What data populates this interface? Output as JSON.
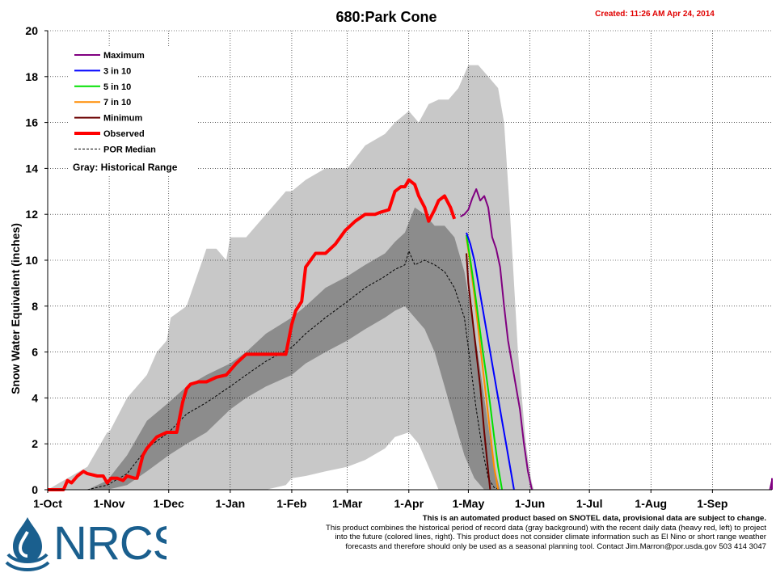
{
  "chart_data": {
    "type": "line",
    "title": "680:Park Cone",
    "created": "Created: 11:26 AM Apr 24, 2014",
    "ylabel": "Snow Water Equivalent (inches)",
    "xlabel": "",
    "ylim": [
      0,
      20
    ],
    "yticks": [
      0,
      2,
      4,
      6,
      8,
      10,
      12,
      14,
      16,
      18,
      20
    ],
    "grid": true,
    "legend_position": "top-left",
    "x_ticks": [
      {
        "label": "1-Oct",
        "day": 0
      },
      {
        "label": "1-Nov",
        "day": 31
      },
      {
        "label": "1-Dec",
        "day": 61
      },
      {
        "label": "1-Jan",
        "day": 92
      },
      {
        "label": "1-Feb",
        "day": 123
      },
      {
        "label": "1-Mar",
        "day": 151
      },
      {
        "label": "1-Apr",
        "day": 182
      },
      {
        "label": "1-May",
        "day": 212
      },
      {
        "label": "1-Jun",
        "day": 243
      },
      {
        "label": "1-Jul",
        "day": 273
      },
      {
        "label": "1-Aug",
        "day": 304
      },
      {
        "label": "1-Sep",
        "day": 335
      }
    ],
    "x_max_day": 365,
    "historical_range_outer": {
      "days": [
        0,
        10,
        20,
        30,
        31,
        40,
        50,
        55,
        60,
        62,
        70,
        80,
        85,
        90,
        92,
        100,
        110,
        120,
        123,
        130,
        140,
        151,
        160,
        170,
        175,
        182,
        187,
        192,
        197,
        202,
        207,
        212,
        217,
        222,
        227,
        230,
        233,
        235,
        237,
        239,
        241,
        243,
        244,
        245
      ],
      "upper": [
        0,
        0.5,
        1.0,
        2.5,
        2.5,
        4.0,
        5.0,
        6.0,
        6.5,
        7.5,
        8.0,
        10.5,
        10.5,
        10.0,
        11.0,
        11.0,
        12.0,
        13.0,
        13.0,
        13.5,
        14.0,
        14.0,
        15.0,
        15.5,
        16.0,
        16.5,
        16.0,
        16.8,
        17.0,
        17.0,
        17.5,
        18.5,
        18.5,
        18.0,
        17.5,
        16.0,
        12.0,
        9.0,
        6.0,
        4.0,
        2.0,
        0.8,
        0.3,
        0
      ],
      "lower": [
        0,
        0,
        0,
        0,
        0,
        0,
        0,
        0,
        0,
        0,
        0,
        0,
        0,
        0,
        0,
        0,
        0,
        0.2,
        0.5,
        0.6,
        0.8,
        1.0,
        1.3,
        1.8,
        2.3,
        2.5,
        2.0,
        1.0,
        0,
        0,
        0,
        0,
        0,
        0,
        0,
        0,
        0,
        0,
        0,
        0,
        0,
        0,
        0,
        0
      ]
    },
    "historical_range_inner": {
      "days": [
        20,
        30,
        40,
        50,
        61,
        70,
        80,
        92,
        100,
        110,
        123,
        130,
        140,
        151,
        160,
        170,
        175,
        180,
        185,
        190,
        195,
        200,
        205,
        210,
        215,
        220,
        225,
        228
      ],
      "upper": [
        0,
        0.4,
        1.5,
        3.0,
        3.8,
        4.5,
        5.0,
        5.5,
        6.0,
        6.8,
        7.5,
        8.0,
        8.8,
        9.3,
        9.8,
        10.3,
        10.8,
        11.2,
        12.3,
        12.0,
        11.5,
        11.5,
        11.0,
        9.5,
        7.0,
        4.0,
        1.0,
        0
      ],
      "lower": [
        0,
        0,
        0.2,
        0.8,
        1.5,
        2.0,
        2.5,
        3.5,
        4.0,
        4.5,
        5.0,
        5.5,
        6.0,
        6.5,
        7.0,
        7.5,
        7.8,
        8.0,
        7.5,
        7.0,
        6.0,
        4.5,
        3.0,
        1.5,
        0.5,
        0,
        0,
        0
      ]
    },
    "series": [
      {
        "name": "Maximum",
        "color": "#800080",
        "width": 2,
        "days": [
          208,
          210,
          212,
          214,
          216,
          218,
          220,
          222,
          224,
          226,
          228,
          230,
          232,
          234,
          236,
          238,
          240,
          242,
          244
        ],
        "values": [
          11.9,
          12.0,
          12.2,
          12.7,
          13.1,
          12.6,
          12.8,
          12.3,
          11.0,
          10.5,
          9.7,
          8.0,
          6.5,
          5.5,
          4.5,
          3.5,
          2.0,
          0.8,
          0
        ],
        "values_note": "Maximum forecast trace"
      },
      {
        "name": "3 in 10",
        "color": "#0000ff",
        "width": 2,
        "days": [
          211,
          213,
          215,
          217,
          219,
          221,
          223,
          225,
          227,
          229,
          231,
          233,
          235
        ],
        "values": [
          11.2,
          10.7,
          10.0,
          9.0,
          8.0,
          7.0,
          6.0,
          5.0,
          4.0,
          3.0,
          2.0,
          1.0,
          0
        ]
      },
      {
        "name": "5 in 10",
        "color": "#00e000",
        "width": 2,
        "days": [
          211,
          213,
          215,
          217,
          219,
          221,
          223,
          225,
          227,
          229
        ],
        "values": [
          11.1,
          10.0,
          8.8,
          7.5,
          6.2,
          5.0,
          3.7,
          2.3,
          1.0,
          0
        ]
      },
      {
        "name": "7 in 10",
        "color": "#ff8c00",
        "width": 2,
        "days": [
          211,
          213,
          215,
          217,
          219,
          221,
          223,
          225,
          227
        ],
        "values": [
          11.0,
          9.8,
          8.5,
          7.0,
          5.5,
          4.0,
          2.5,
          1.0,
          0
        ]
      },
      {
        "name": "Minimum",
        "color": "#6b0000",
        "width": 2,
        "days": [
          211,
          212,
          214,
          216,
          218,
          220,
          222,
          223
        ],
        "values": [
          10.3,
          9.0,
          7.5,
          6.0,
          4.5,
          2.5,
          0.8,
          0
        ]
      },
      {
        "name": "Observed",
        "color": "#ff0000",
        "width": 4,
        "days": [
          0,
          8,
          10,
          12,
          15,
          18,
          20,
          25,
          28,
          30,
          32,
          35,
          38,
          40,
          44,
          45,
          48,
          50,
          52,
          55,
          60,
          65,
          68,
          70,
          72,
          76,
          80,
          85,
          90,
          95,
          100,
          105,
          110,
          115,
          120,
          123,
          125,
          128,
          130,
          135,
          140,
          145,
          150,
          155,
          160,
          165,
          168,
          172,
          175,
          178,
          180,
          182,
          185,
          187,
          190,
          192,
          195,
          197,
          200,
          203,
          205
        ],
        "values": [
          0,
          0,
          0.4,
          0.3,
          0.6,
          0.8,
          0.7,
          0.6,
          0.6,
          0.3,
          0.5,
          0.5,
          0.4,
          0.6,
          0.5,
          0.5,
          1.5,
          1.8,
          2.0,
          2.3,
          2.5,
          2.5,
          3.8,
          4.4,
          4.6,
          4.7,
          4.7,
          4.9,
          5.0,
          5.5,
          5.9,
          5.9,
          5.9,
          5.9,
          5.9,
          7.2,
          7.8,
          8.2,
          9.7,
          10.3,
          10.3,
          10.7,
          11.3,
          11.7,
          12.0,
          12.0,
          12.1,
          12.2,
          13.0,
          13.2,
          13.2,
          13.5,
          13.3,
          12.8,
          12.3,
          11.7,
          12.2,
          12.6,
          12.8,
          12.3,
          11.8
        ]
      },
      {
        "name": "POR Median",
        "color": "#000000",
        "width": 1,
        "dash": "3,2",
        "days": [
          20,
          30,
          40,
          50,
          61,
          70,
          80,
          92,
          100,
          110,
          123,
          130,
          140,
          151,
          160,
          170,
          175,
          180,
          182,
          185,
          190,
          195,
          200,
          205,
          210,
          213,
          216,
          219,
          222,
          225,
          228
        ],
        "values": [
          0,
          0.2,
          0.7,
          1.8,
          2.5,
          3.3,
          3.8,
          4.5,
          5.0,
          5.6,
          6.2,
          6.8,
          7.5,
          8.2,
          8.8,
          9.3,
          9.6,
          9.8,
          10.4,
          9.8,
          10.0,
          9.8,
          9.5,
          8.8,
          7.5,
          5.5,
          3.5,
          1.8,
          0.5,
          0.1,
          0
        ]
      }
    ],
    "legend": [
      {
        "name": "Maximum",
        "color": "#800080"
      },
      {
        "name": "3 in 10",
        "color": "#0000ff"
      },
      {
        "name": "5 in 10",
        "color": "#00e000"
      },
      {
        "name": "7 in 10",
        "color": "#ff8c00"
      },
      {
        "name": "Minimum",
        "color": "#6b0000"
      },
      {
        "name": "Observed",
        "color": "#ff0000"
      },
      {
        "name": "POR Median",
        "color": "#000000"
      }
    ],
    "range_label": "Gray: Historical Range",
    "late_season_blip": {
      "days": [
        364,
        366,
        368,
        370
      ],
      "values": [
        0,
        0.4,
        0.5,
        0
      ]
    },
    "colors": {
      "outer_range": "#c8c8c8",
      "inner_range": "#8c8c8c",
      "grid": "#000000"
    }
  },
  "footer": {
    "lead": "This is an automated product based on SNOTEL data, provisional data are subject to change.",
    "line1": "This product combines the historical period of record data (gray background) with the recent daily data (heavy red, left) to project",
    "line2": "into the future (colored lines, right). This product does not consider climate information such as El Nino or short range weather",
    "line3": "forecasts and therefore should only be used as a seasonal planning tool. Contact Jim.Marron@por.usda.gov 503 414 3047"
  },
  "logo": {
    "text": "NRCS"
  }
}
